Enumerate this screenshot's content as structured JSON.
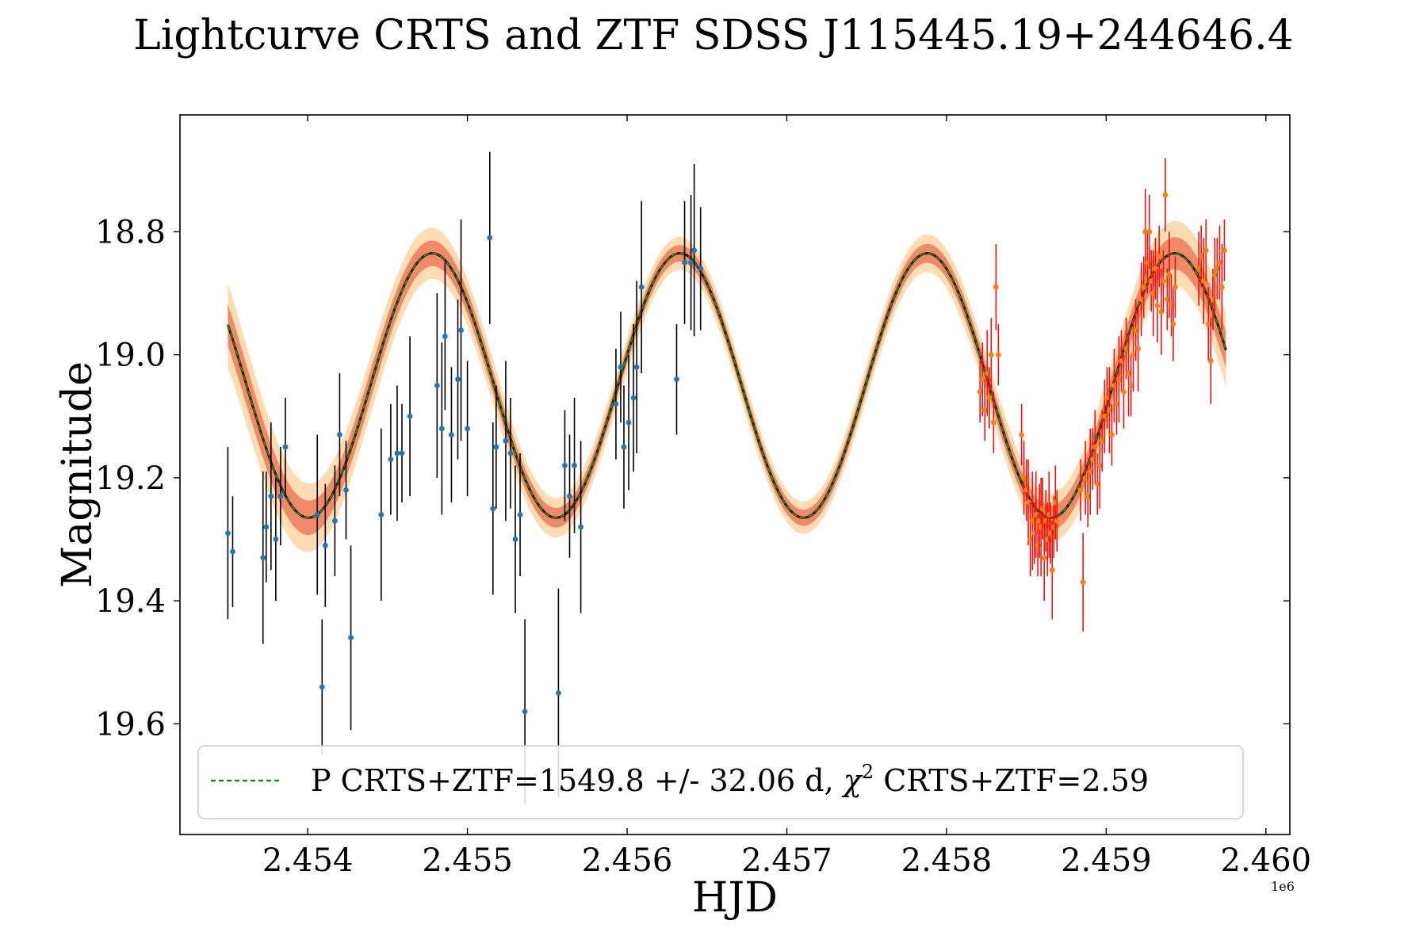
{
  "chart_data": {
    "type": "scatter",
    "title": "Lightcurve CRTS and ZTF SDSS J115445.19+244646.4",
    "xlabel": "HJD",
    "ylabel": "Magnitude",
    "x_offset_label": "1e6",
    "xlim": [
      2453200,
      2460150
    ],
    "ylim": [
      19.78,
      18.61
    ],
    "y_inverted": true,
    "x_ticks": [
      2454000,
      2455000,
      2456000,
      2457000,
      2458000,
      2459000,
      2460000
    ],
    "x_tick_labels": [
      "2.454",
      "2.455",
      "2.456",
      "2.457",
      "2.458",
      "2.459",
      "2.460"
    ],
    "y_ticks": [
      18.8,
      19.0,
      19.2,
      19.4,
      19.6
    ],
    "y_tick_labels": [
      "18.8",
      "19.0",
      "19.2",
      "19.4",
      "19.6"
    ],
    "legend": {
      "position": "lower-center",
      "label": "P CRTS+ZTF=1549.8 +/- 32.06 d, χ² CRTS+ZTF=2.59",
      "label_main": "P CRTS+ZTF=1549.8 +/- 32.06 d, ",
      "label_chi": "χ",
      "label_sup": "2",
      "label_tail": " CRTS+ZTF=2.59"
    },
    "model": {
      "name": "P CRTS+ZTF=1549.8 +/- 32.06 d",
      "period": 1549.8,
      "period_err": 32.06,
      "chi2": 2.59,
      "mean": 19.05,
      "amplitude": 0.215,
      "max_brightness_hjd": 2454780,
      "x_range": [
        2453500,
        2459750
      ],
      "line_color": "#1a8a1a",
      "band_inner_color": "#f08060",
      "band_outer_color": "#fcd9a8"
    },
    "series": [
      {
        "name": "CRTS",
        "marker_color": "#1f77b4",
        "errorbar_color": "#000000",
        "points": [
          [
            2453500,
            19.29,
            0.14
          ],
          [
            2453530,
            19.32,
            0.09
          ],
          [
            2453720,
            19.33,
            0.14
          ],
          [
            2453740,
            19.28,
            0.09
          ],
          [
            2453770,
            19.23,
            0.12
          ],
          [
            2453800,
            19.3,
            0.1
          ],
          [
            2453830,
            19.23,
            0.08
          ],
          [
            2453860,
            19.15,
            0.08
          ],
          [
            2454060,
            19.26,
            0.13
          ],
          [
            2454090,
            19.54,
            0.11
          ],
          [
            2454110,
            19.31,
            0.1
          ],
          [
            2454170,
            19.27,
            0.09
          ],
          [
            2454200,
            19.13,
            0.1
          ],
          [
            2454240,
            19.22,
            0.08
          ],
          [
            2454270,
            19.46,
            0.15
          ],
          [
            2454460,
            19.26,
            0.14
          ],
          [
            2454520,
            19.17,
            0.09
          ],
          [
            2454560,
            19.16,
            0.11
          ],
          [
            2454590,
            19.16,
            0.08
          ],
          [
            2454640,
            19.1,
            0.13
          ],
          [
            2454810,
            19.05,
            0.15
          ],
          [
            2454840,
            19.12,
            0.14
          ],
          [
            2454860,
            18.97,
            0.12
          ],
          [
            2454900,
            19.13,
            0.11
          ],
          [
            2454940,
            19.04,
            0.13
          ],
          [
            2454960,
            18.96,
            0.18
          ],
          [
            2455000,
            19.12,
            0.11
          ],
          [
            2455140,
            18.81,
            0.14
          ],
          [
            2455160,
            19.25,
            0.14
          ],
          [
            2455180,
            19.15,
            0.1
          ],
          [
            2455240,
            19.14,
            0.13
          ],
          [
            2455270,
            19.16,
            0.09
          ],
          [
            2455300,
            19.3,
            0.12
          ],
          [
            2455330,
            19.26,
            0.1
          ],
          [
            2455360,
            19.58,
            0.15
          ],
          [
            2455570,
            19.55,
            0.17
          ],
          [
            2455610,
            19.18,
            0.09
          ],
          [
            2455640,
            19.23,
            0.1
          ],
          [
            2455670,
            19.18,
            0.11
          ],
          [
            2455710,
            19.28,
            0.14
          ],
          [
            2455930,
            19.08,
            0.09
          ],
          [
            2455960,
            19.02,
            0.09
          ],
          [
            2455980,
            19.15,
            0.1
          ],
          [
            2456010,
            19.11,
            0.11
          ],
          [
            2456040,
            19.07,
            0.12
          ],
          [
            2456060,
            19.02,
            0.14
          ],
          [
            2456090,
            18.89,
            0.14
          ],
          [
            2456310,
            19.04,
            0.09
          ],
          [
            2456360,
            18.85,
            0.1
          ],
          [
            2456400,
            18.85,
            0.11
          ],
          [
            2456420,
            18.83,
            0.14
          ],
          [
            2456460,
            18.86,
            0.1
          ]
        ]
      },
      {
        "name": "ZTF",
        "marker_color": "#ff7f0e",
        "errorbar_color": "#ee1111",
        "points": [
          [
            2458210,
            19.06,
            0.05
          ],
          [
            2458225,
            19.04,
            0.06
          ],
          [
            2458240,
            19.09,
            0.05
          ],
          [
            2458255,
            19.03,
            0.07
          ],
          [
            2458268,
            19.07,
            0.05
          ],
          [
            2458280,
            19.0,
            0.06
          ],
          [
            2458295,
            19.11,
            0.05
          ],
          [
            2458310,
            18.89,
            0.07
          ],
          [
            2458325,
            19.0,
            0.05
          ],
          [
            2458470,
            19.13,
            0.05
          ],
          [
            2458485,
            19.2,
            0.06
          ],
          [
            2458500,
            19.22,
            0.05
          ],
          [
            2458512,
            19.24,
            0.07
          ],
          [
            2458525,
            19.3,
            0.06
          ],
          [
            2458538,
            19.27,
            0.08
          ],
          [
            2458550,
            19.29,
            0.05
          ],
          [
            2458560,
            19.26,
            0.07
          ],
          [
            2458572,
            19.31,
            0.05
          ],
          [
            2458582,
            19.27,
            0.06
          ],
          [
            2458592,
            19.28,
            0.08
          ],
          [
            2458602,
            19.25,
            0.05
          ],
          [
            2458612,
            19.33,
            0.07
          ],
          [
            2458622,
            19.27,
            0.05
          ],
          [
            2458632,
            19.3,
            0.06
          ],
          [
            2458642,
            19.26,
            0.07
          ],
          [
            2458652,
            19.29,
            0.05
          ],
          [
            2458662,
            19.35,
            0.08
          ],
          [
            2458672,
            19.28,
            0.05
          ],
          [
            2458682,
            19.24,
            0.06
          ],
          [
            2458692,
            19.27,
            0.05
          ],
          [
            2458840,
            19.22,
            0.05
          ],
          [
            2458855,
            19.37,
            0.08
          ],
          [
            2458870,
            19.2,
            0.06
          ],
          [
            2458885,
            19.23,
            0.05
          ],
          [
            2458900,
            19.19,
            0.07
          ],
          [
            2458915,
            19.17,
            0.05
          ],
          [
            2458930,
            19.15,
            0.06
          ],
          [
            2458945,
            19.21,
            0.05
          ],
          [
            2458960,
            19.18,
            0.07
          ],
          [
            2458975,
            19.14,
            0.05
          ],
          [
            2458990,
            19.1,
            0.06
          ],
          [
            2459005,
            19.07,
            0.05
          ],
          [
            2459020,
            19.09,
            0.07
          ],
          [
            2459035,
            19.13,
            0.05
          ],
          [
            2459050,
            19.05,
            0.06
          ],
          [
            2459065,
            19.08,
            0.05
          ],
          [
            2459080,
            19.04,
            0.07
          ],
          [
            2459095,
            19.01,
            0.05
          ],
          [
            2459110,
            19.06,
            0.06
          ],
          [
            2459125,
            18.99,
            0.05
          ],
          [
            2459140,
            19.03,
            0.07
          ],
          [
            2459155,
            19.05,
            0.05
          ],
          [
            2459170,
            19.0,
            0.06
          ],
          [
            2459185,
            18.96,
            0.05
          ],
          [
            2459200,
            18.99,
            0.07
          ],
          [
            2459220,
            18.91,
            0.06
          ],
          [
            2459235,
            18.89,
            0.05
          ],
          [
            2459245,
            18.8,
            0.07
          ],
          [
            2459258,
            18.85,
            0.05
          ],
          [
            2459270,
            18.8,
            0.06
          ],
          [
            2459282,
            18.88,
            0.05
          ],
          [
            2459295,
            18.9,
            0.07
          ],
          [
            2459308,
            18.86,
            0.05
          ],
          [
            2459320,
            18.92,
            0.06
          ],
          [
            2459332,
            18.84,
            0.05
          ],
          [
            2459345,
            18.93,
            0.07
          ],
          [
            2459358,
            18.88,
            0.05
          ],
          [
            2459370,
            18.74,
            0.06
          ],
          [
            2459382,
            18.91,
            0.05
          ],
          [
            2459395,
            18.87,
            0.07
          ],
          [
            2459408,
            18.92,
            0.05
          ],
          [
            2459420,
            18.95,
            0.06
          ],
          [
            2459432,
            18.89,
            0.05
          ],
          [
            2459580,
            18.86,
            0.06
          ],
          [
            2459595,
            18.84,
            0.05
          ],
          [
            2459610,
            18.88,
            0.07
          ],
          [
            2459625,
            18.83,
            0.05
          ],
          [
            2459640,
            18.95,
            0.06
          ],
          [
            2459655,
            19.01,
            0.07
          ],
          [
            2459668,
            18.91,
            0.05
          ],
          [
            2459680,
            18.87,
            0.06
          ],
          [
            2459695,
            18.86,
            0.05
          ],
          [
            2459710,
            18.85,
            0.06
          ],
          [
            2459725,
            18.89,
            0.07
          ],
          [
            2459740,
            18.83,
            0.05
          ]
        ]
      }
    ]
  }
}
